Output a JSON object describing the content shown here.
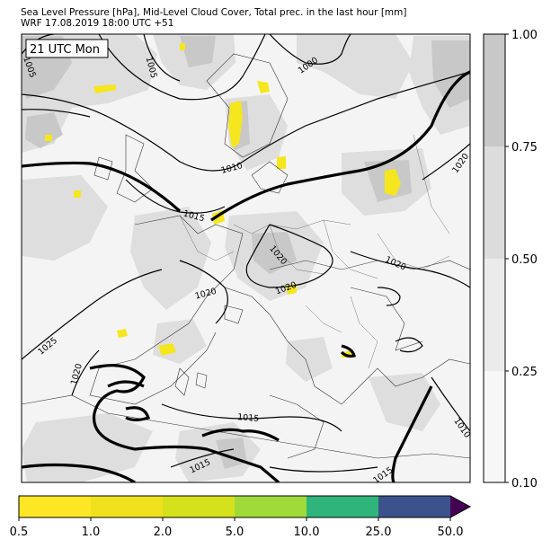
{
  "header": {
    "line1": "Sea Level Pressure [hPa], Mid-Level Cloud Cover, Total prec. in the last hour [mm]",
    "line2": "WRF 17.08.2019 18:00 UTC +51"
  },
  "map": {
    "time_label": "21 UTC Mon",
    "isobar_labels": [
      "1005",
      "1005",
      "1000",
      "1010",
      "1015",
      "1020",
      "1020",
      "1020",
      "1020",
      "1025",
      "1020",
      "1015",
      "1015",
      "1010",
      "1015"
    ]
  },
  "cloud_colorbar": {
    "ticks": [
      "1.00",
      "0.75",
      "0.50",
      "0.25",
      "0.10"
    ],
    "colors": [
      "#c8c8c8",
      "#dcdcdc",
      "#ebebeb",
      "#f7f7f7"
    ]
  },
  "precip_colorbar": {
    "ticks": [
      "0.5",
      "1.0",
      "2.0",
      "5.0",
      "10.0",
      "25.0",
      "50.0"
    ],
    "colors": [
      "#fde725",
      "#f0e11e",
      "#d5e11a",
      "#a0da39",
      "#2fb47c",
      "#3b528b",
      "#440154"
    ]
  },
  "colors": {
    "land_cloud_light": "#f2f2f2",
    "cloud_mid": "#dedede",
    "cloud_dense": "#c6c6c6",
    "precip_yellow": "#f5e61e"
  }
}
